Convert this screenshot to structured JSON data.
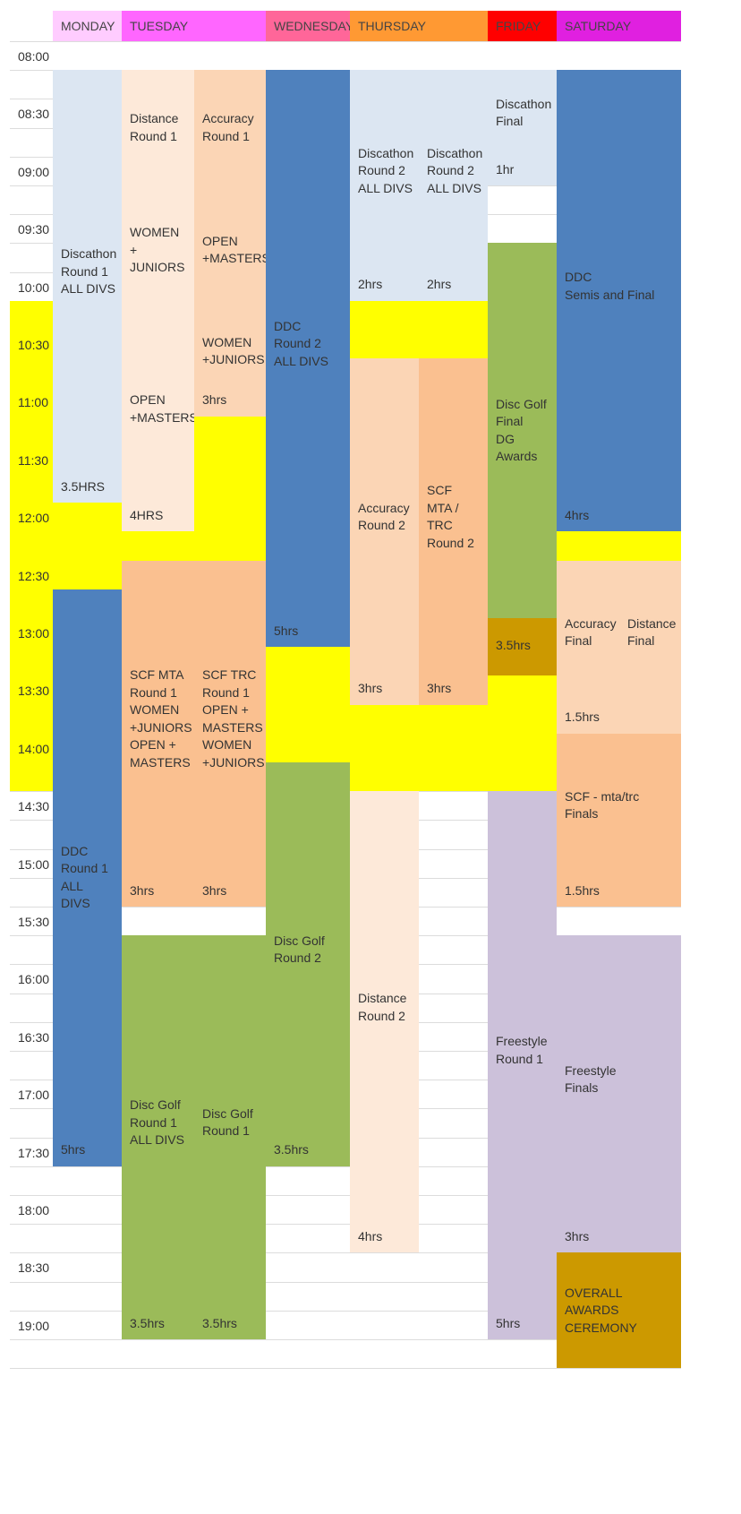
{
  "colors": {
    "header_bg_default": "#ffffff",
    "break_yellow": "#ffff00",
    "light_blue": "#dce6f2",
    "pale_peach": "#fde9d9",
    "peach": "#fbd5b5",
    "orange": "#fac090",
    "blue": "#4f81bd",
    "green": "#9bbb59",
    "lavender": "#ccc1da",
    "gold": "#cc9900",
    "gridline": "#dcdcdc"
  },
  "days": [
    {
      "name": "MONDAY",
      "color": "#ffccff"
    },
    {
      "name": "TUESDAY",
      "color": "#ff66ff"
    },
    {
      "name": "WEDNESDAY",
      "color": "#ff6699"
    },
    {
      "name": "THURSDAY",
      "color": "#ff9933"
    },
    {
      "name": "FRIDAY",
      "color": "#ff0000"
    },
    {
      "name": "SATURDAY",
      "color": "#e020e0"
    }
  ],
  "times": [
    "08:00",
    "08:30",
    "09:00",
    "09:30",
    "10:00",
    "10:30",
    "11:00",
    "11:30",
    "12:00",
    "12:30",
    "13:00",
    "13:30",
    "14:00",
    "14:30",
    "15:00",
    "15:30",
    "16:00",
    "16:30",
    "17:00",
    "17:30",
    "18:00",
    "18:30",
    "19:00"
  ],
  "yellow_breaks": [
    {
      "col": "time",
      "start": 9,
      "end": 26
    },
    {
      "col": "mon",
      "start": 15,
      "end": 19
    },
    {
      "col": "tue_a",
      "start": 17,
      "end": 18
    },
    {
      "col": "tue_b",
      "start": 13,
      "end": 18
    },
    {
      "col": "wed",
      "start": 21,
      "end": 25
    },
    {
      "col": "thu",
      "start": 9,
      "end": 11
    },
    {
      "col": "thu_a",
      "start": 23,
      "end": 26
    },
    {
      "col": "thu_b",
      "start": 23,
      "end": 26
    },
    {
      "col": "fri",
      "start": 22,
      "end": 26
    },
    {
      "col": "sat",
      "start": 17,
      "end": 18
    }
  ],
  "events": [
    {
      "col": "mon",
      "start": 1,
      "end": 15,
      "color": "light_blue",
      "text": "Discathon\nRound 1\nALL DIVS"
    },
    {
      "col": "mon",
      "start": 15,
      "end": 16,
      "color": "light_blue",
      "text": "3.5HRS",
      "dur": true
    },
    {
      "col": "mon",
      "start": 19,
      "end": 20,
      "color": "blue",
      "text": ""
    },
    {
      "col": "mon",
      "start": 20,
      "end": 38,
      "color": "blue",
      "text": "DDC\nRound 1\nALL DIVS"
    },
    {
      "col": "mon",
      "start": 38,
      "end": 39,
      "color": "blue",
      "text": "5hrs",
      "dur": true
    },
    {
      "col": "tue_a",
      "start": 1,
      "end": 5,
      "color": "pale_peach",
      "text": "Distance\nRound 1"
    },
    {
      "col": "tue_a",
      "start": 5,
      "end": 9.5,
      "color": "pale_peach",
      "text": "WOMEN +\nJUNIORS"
    },
    {
      "col": "tue_a",
      "start": 9.5,
      "end": 16,
      "color": "pale_peach",
      "text": "OPEN\n+MASTERS"
    },
    {
      "col": "tue_a",
      "start": 16,
      "end": 17,
      "color": "pale_peach",
      "text": "4HRS",
      "dur": true
    },
    {
      "col": "tue_b",
      "start": 1,
      "end": 5,
      "color": "peach",
      "text": "Accuracy\nRound 1"
    },
    {
      "col": "tue_b",
      "start": 5,
      "end": 9.5,
      "color": "peach",
      "text": "OPEN\n+MASTERS"
    },
    {
      "col": "tue_b",
      "start": 9.5,
      "end": 12,
      "color": "peach",
      "text": "WOMEN\n+JUNIORS"
    },
    {
      "col": "tue_b",
      "start": 12,
      "end": 13,
      "color": "peach",
      "text": "3hrs",
      "dur": true
    },
    {
      "col": "tue_a",
      "start": 18,
      "end": 29,
      "color": "orange",
      "text": "SCF MTA\nRound 1\nWOMEN\n+JUNIORS\nOPEN +\nMASTERS"
    },
    {
      "col": "tue_a",
      "start": 29,
      "end": 30,
      "color": "orange",
      "text": "3hrs",
      "dur": true
    },
    {
      "col": "tue_b",
      "start": 18,
      "end": 29,
      "color": "orange",
      "text": "SCF TRC\nRound 1\nOPEN +\nMASTERS\nWOMEN\n+JUNIORS"
    },
    {
      "col": "tue_b",
      "start": 29,
      "end": 30,
      "color": "orange",
      "text": "3hrs",
      "dur": true
    },
    {
      "col": "tue_a",
      "start": 31,
      "end": 44,
      "color": "green",
      "text": "Disc Golf\nRound 1\nALL DIVS"
    },
    {
      "col": "tue_a",
      "start": 44,
      "end": 45,
      "color": "green",
      "text": "3.5hrs",
      "dur": true
    },
    {
      "col": "tue_b",
      "start": 31,
      "end": 44,
      "color": "green",
      "text": "Disc Golf\nRound 1"
    },
    {
      "col": "tue_b",
      "start": 44,
      "end": 45,
      "color": "green",
      "text": "3.5hrs",
      "dur": true
    },
    {
      "col": "wed",
      "start": 1,
      "end": 20,
      "color": "blue",
      "text": "DDC\nRound 2\nALL DIVS"
    },
    {
      "col": "wed",
      "start": 20,
      "end": 21,
      "color": "blue",
      "text": "5hrs",
      "dur": true
    },
    {
      "col": "wed",
      "start": 25,
      "end": 38,
      "color": "green",
      "text": "Disc Golf\nRound 2"
    },
    {
      "col": "wed",
      "start": 38,
      "end": 39,
      "color": "green",
      "text": "3.5hrs",
      "dur": true
    },
    {
      "col": "thu_a",
      "start": 1,
      "end": 8,
      "color": "light_blue",
      "text": "Discathon\nRound 2\nALL DIVS"
    },
    {
      "col": "thu_a",
      "start": 8,
      "end": 9,
      "color": "light_blue",
      "text": "2hrs",
      "dur": true
    },
    {
      "col": "thu_b",
      "start": 1,
      "end": 8,
      "color": "light_blue",
      "text": "Discathon\nRound 2\nALL DIVS"
    },
    {
      "col": "thu_b",
      "start": 8,
      "end": 9,
      "color": "light_blue",
      "text": "2hrs",
      "dur": true
    },
    {
      "col": "thu_a",
      "start": 11,
      "end": 22,
      "color": "peach",
      "text": "Accuracy\nRound 2"
    },
    {
      "col": "thu_a",
      "start": 22,
      "end": 23,
      "color": "peach",
      "text": "3hrs",
      "dur": true
    },
    {
      "col": "thu_b",
      "start": 11,
      "end": 22,
      "color": "orange",
      "text": "SCF MTA /\nTRC\nRound 2"
    },
    {
      "col": "thu_b",
      "start": 22,
      "end": 23,
      "color": "orange",
      "text": "3hrs",
      "dur": true
    },
    {
      "col": "thu_a",
      "start": 26,
      "end": 41,
      "color": "pale_peach",
      "text": "Distance\nRound 2"
    },
    {
      "col": "thu_a",
      "start": 41,
      "end": 42,
      "color": "pale_peach",
      "text": "4hrs",
      "dur": true
    },
    {
      "col": "fri",
      "start": 1,
      "end": 4,
      "color": "light_blue",
      "text": "Discathon\nFinal"
    },
    {
      "col": "fri",
      "start": 4,
      "end": 5,
      "color": "light_blue",
      "text": "1hr",
      "dur": true
    },
    {
      "col": "fri",
      "start": 7,
      "end": 20,
      "color": "green",
      "text": "Disc Golf\nFinal\nDG\nAwards"
    },
    {
      "col": "fri",
      "start": 20,
      "end": 22,
      "color": "gold",
      "text": "3.5hrs",
      "dur": true
    },
    {
      "col": "fri",
      "start": 26,
      "end": 44,
      "color": "lavender",
      "text": "Freestyle\nRound 1"
    },
    {
      "col": "fri",
      "start": 44,
      "end": 45,
      "color": "lavender",
      "text": "5hrs",
      "dur": true
    },
    {
      "col": "sat",
      "start": 1,
      "end": 16,
      "color": "blue",
      "text": "DDC\nSemis and Final"
    },
    {
      "col": "sat",
      "start": 16,
      "end": 17,
      "color": "blue",
      "text": "4hrs",
      "dur": true
    },
    {
      "col": "sat_a",
      "start": 18,
      "end": 23,
      "color": "peach",
      "text": "Accuracy\nFinal"
    },
    {
      "col": "sat_b",
      "start": 18,
      "end": 23,
      "color": "peach",
      "text": "Distance\nFinal"
    },
    {
      "col": "sat",
      "start": 23,
      "end": 24,
      "color": "peach",
      "text": "1.5hrs",
      "dur": true
    },
    {
      "col": "sat",
      "start": 24,
      "end": 29,
      "color": "orange",
      "text": "SCF - mta/trc\nFinals"
    },
    {
      "col": "sat",
      "start": 29,
      "end": 30,
      "color": "orange",
      "text": "1.5hrs",
      "dur": true
    },
    {
      "col": "sat",
      "start": 31,
      "end": 41,
      "color": "lavender",
      "text": "Freestyle\nFinals"
    },
    {
      "col": "sat",
      "start": 41,
      "end": 42,
      "color": "lavender",
      "text": "3hrs",
      "dur": true
    },
    {
      "col": "sat",
      "start": 42,
      "end": 46,
      "color": "gold",
      "text": "OVERALL\nAWARDS\nCEREMONY"
    }
  ]
}
